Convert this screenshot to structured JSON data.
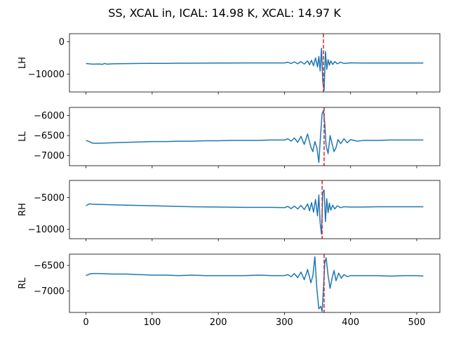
{
  "figure": {
    "title": "SS, XCAL in, ICAL: 14.98 K, XCAL: 14.97 K"
  },
  "chart_data": [
    {
      "type": "line",
      "ylabel": "LH",
      "xlim": [
        -25,
        535
      ],
      "ylim": [
        -15500,
        2500
      ],
      "yticks": [
        0,
        -10000
      ],
      "ytick_labels": [
        "0",
        "−10000"
      ],
      "line_color": "#1f77b4",
      "marker": {
        "x": 359,
        "color": "#d62728",
        "style": "dashed"
      },
      "series": {
        "x": [
          0,
          10,
          20,
          25,
          28,
          32,
          40,
          60,
          80,
          100,
          120,
          140,
          160,
          180,
          200,
          220,
          240,
          260,
          280,
          300,
          305,
          310,
          315,
          320,
          325,
          330,
          335,
          338,
          341,
          344,
          347,
          350,
          352,
          354,
          356,
          358,
          360,
          362,
          364,
          366,
          368,
          370,
          373,
          376,
          380,
          385,
          390,
          400,
          420,
          440,
          460,
          480,
          500,
          510
        ],
        "y": [
          -6700,
          -6900,
          -6850,
          -6950,
          -6700,
          -6900,
          -6800,
          -6750,
          -6700,
          -6650,
          -6650,
          -6600,
          -6600,
          -6580,
          -6560,
          -6560,
          -6540,
          -6540,
          -6520,
          -6520,
          -6300,
          -6700,
          -6200,
          -6800,
          -6100,
          -6900,
          -5900,
          -7100,
          -5700,
          -7400,
          -5000,
          -7800,
          -4500,
          -9000,
          -2000,
          -12500,
          -15000,
          -3000,
          -8500,
          -5500,
          -7200,
          -5900,
          -7000,
          -6100,
          -6800,
          -6300,
          -6700,
          -6500,
          -6550,
          -6550,
          -6550,
          -6550,
          -6550,
          -6550
        ]
      }
    },
    {
      "type": "line",
      "ylabel": "LL",
      "xlim": [
        -25,
        535
      ],
      "ylim": [
        -7250,
        -5800
      ],
      "yticks": [
        -6000,
        -6500,
        -7000
      ],
      "ytick_labels": [
        "−6000",
        "−6500",
        "−7000"
      ],
      "line_color": "#1f77b4",
      "marker": {
        "x": 360,
        "color": "#d62728",
        "style": "dashed"
      },
      "series": {
        "x": [
          0,
          5,
          10,
          20,
          40,
          60,
          80,
          100,
          120,
          140,
          160,
          180,
          200,
          220,
          240,
          260,
          280,
          300,
          305,
          310,
          315,
          320,
          325,
          330,
          335,
          340,
          343,
          346,
          349,
          352,
          355,
          357,
          359,
          361,
          363,
          366,
          369,
          372,
          375,
          378,
          381,
          385,
          390,
          395,
          400,
          410,
          420,
          440,
          460,
          480,
          500,
          510
        ],
        "y": [
          -6620,
          -6650,
          -6690,
          -6690,
          -6680,
          -6670,
          -6660,
          -6650,
          -6650,
          -6640,
          -6640,
          -6630,
          -6630,
          -6620,
          -6620,
          -6620,
          -6610,
          -6610,
          -6580,
          -6640,
          -6560,
          -6670,
          -6520,
          -6720,
          -6460,
          -6790,
          -6900,
          -6650,
          -6800,
          -7170,
          -6400,
          -5950,
          -5880,
          -6200,
          -6750,
          -6950,
          -6500,
          -6700,
          -6900,
          -6800,
          -6600,
          -6700,
          -6580,
          -6680,
          -6600,
          -6640,
          -6620,
          -6620,
          -6610,
          -6610,
          -6610,
          -6610
        ]
      }
    },
    {
      "type": "line",
      "ylabel": "RH",
      "xlim": [
        -25,
        535
      ],
      "ylim": [
        -11500,
        -2300
      ],
      "yticks": [
        -5000,
        -10000
      ],
      "ytick_labels": [
        "−5000",
        "−10000"
      ],
      "line_color": "#1f77b4",
      "marker": {
        "x": 357,
        "color": "#d62728",
        "style": "dashed"
      },
      "series": {
        "x": [
          0,
          5,
          10,
          40,
          80,
          120,
          160,
          200,
          240,
          280,
          300,
          305,
          310,
          315,
          320,
          325,
          330,
          335,
          338,
          341,
          344,
          347,
          350,
          352,
          354,
          356,
          358,
          360,
          362,
          364,
          366,
          368,
          370,
          373,
          376,
          380,
          385,
          390,
          400,
          420,
          440,
          460,
          480,
          500,
          510
        ],
        "y": [
          -6300,
          -6000,
          -6050,
          -6150,
          -6250,
          -6350,
          -6450,
          -6500,
          -6550,
          -6550,
          -6600,
          -6400,
          -6750,
          -6350,
          -6800,
          -6250,
          -6900,
          -6000,
          -7100,
          -5800,
          -7300,
          -5300,
          -7900,
          -4600,
          -9000,
          -10800,
          -4200,
          -3800,
          -8800,
          -5200,
          -7400,
          -5900,
          -7000,
          -6200,
          -6800,
          -6300,
          -6600,
          -6450,
          -6500,
          -6500,
          -6450,
          -6450,
          -6450,
          -6450,
          -6450
        ]
      }
    },
    {
      "type": "line",
      "ylabel": "RL",
      "xlim": [
        -25,
        535
      ],
      "ylim": [
        -7420,
        -6280
      ],
      "yticks": [
        -6500,
        -7000
      ],
      "ytick_labels": [
        "−6500",
        "−7000"
      ],
      "line_color": "#1f77b4",
      "marker": {
        "x": 360,
        "color": "#d62728",
        "style": "dashed"
      },
      "series": {
        "x": [
          0,
          5,
          10,
          20,
          40,
          60,
          80,
          100,
          120,
          140,
          160,
          180,
          200,
          220,
          240,
          260,
          280,
          300,
          305,
          310,
          315,
          320,
          325,
          330,
          335,
          340,
          343,
          346,
          349,
          352,
          355,
          357,
          359,
          361,
          363,
          366,
          369,
          372,
          375,
          378,
          382,
          386,
          390,
          395,
          400,
          410,
          420,
          440,
          460,
          480,
          500,
          510
        ],
        "y": [
          -6700,
          -6670,
          -6660,
          -6660,
          -6670,
          -6670,
          -6680,
          -6690,
          -6690,
          -6700,
          -6690,
          -6700,
          -6700,
          -6700,
          -6700,
          -6690,
          -6700,
          -6700,
          -6680,
          -6720,
          -6660,
          -6740,
          -6630,
          -6780,
          -6580,
          -6840,
          -6700,
          -6330,
          -6950,
          -7350,
          -7300,
          -7400,
          -6950,
          -6450,
          -6350,
          -6700,
          -6950,
          -6750,
          -6600,
          -6800,
          -6650,
          -6750,
          -6680,
          -6720,
          -6700,
          -6700,
          -6700,
          -6700,
          -6710,
          -6700,
          -6700,
          -6710
        ]
      }
    }
  ]
}
